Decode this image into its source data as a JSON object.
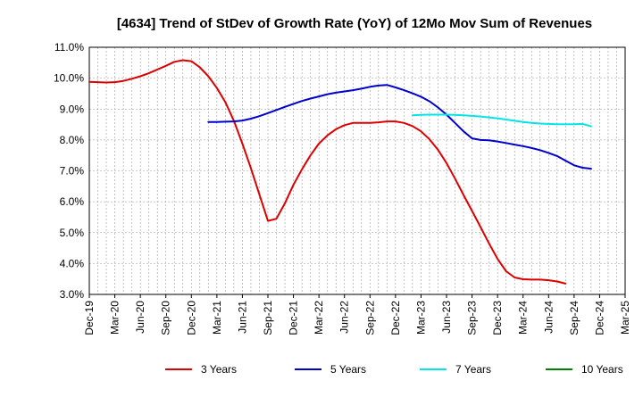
{
  "chart_data": {
    "type": "line",
    "title": "[4634]  Trend of StDev of Growth Rate (YoY) of 12Mo Mov Sum of Revenues",
    "xlabel": "",
    "ylabel": "",
    "ylim": [
      3.0,
      11.0
    ],
    "y_ticks": [
      "3.0%",
      "4.0%",
      "5.0%",
      "6.0%",
      "7.0%",
      "8.0%",
      "9.0%",
      "10.0%",
      "11.0%"
    ],
    "x_start": "2019-12",
    "x_end": "2025-03",
    "x_ticks": [
      "Dec-19",
      "Mar-20",
      "Jun-20",
      "Sep-20",
      "Dec-20",
      "Mar-21",
      "Jun-21",
      "Sep-21",
      "Dec-21",
      "Mar-22",
      "Jun-22",
      "Sep-22",
      "Dec-22",
      "Mar-23",
      "Jun-23",
      "Sep-23",
      "Dec-23",
      "Mar-24",
      "Jun-24",
      "Sep-24",
      "Dec-24",
      "Mar-25"
    ],
    "grid": true,
    "legend_position": "bottom",
    "series": [
      {
        "name": "3 Years",
        "color": "#dd0000",
        "start": "2019-12",
        "values": [
          9.88,
          9.87,
          9.86,
          9.87,
          9.91,
          9.98,
          10.06,
          10.16,
          10.28,
          10.4,
          10.53,
          10.58,
          10.55,
          10.35,
          10.06,
          9.68,
          9.22,
          8.62,
          7.88,
          7.08,
          6.23,
          5.38,
          5.45,
          5.95,
          6.55,
          7.05,
          7.5,
          7.88,
          8.15,
          8.35,
          8.48,
          8.55,
          8.55,
          8.55,
          8.57,
          8.6,
          8.6,
          8.55,
          8.45,
          8.28,
          8.02,
          7.68,
          7.25,
          6.75,
          6.22,
          5.7,
          5.18,
          4.65,
          4.15,
          3.75,
          3.55,
          3.49,
          3.48,
          3.48,
          3.46,
          3.42,
          3.35
        ]
      },
      {
        "name": "5 Years",
        "color": "#0000cc",
        "start": "2021-02",
        "values": [
          8.58,
          8.58,
          8.59,
          8.6,
          8.63,
          8.69,
          8.77,
          8.87,
          8.97,
          9.07,
          9.17,
          9.26,
          9.34,
          9.41,
          9.48,
          9.53,
          9.57,
          9.61,
          9.66,
          9.72,
          9.76,
          9.78,
          9.7,
          9.61,
          9.51,
          9.4,
          9.25,
          9.05,
          8.82,
          8.55,
          8.28,
          8.05,
          8.0,
          7.99,
          7.95,
          7.9,
          7.85,
          7.8,
          7.74,
          7.67,
          7.58,
          7.48,
          7.33,
          7.18,
          7.1,
          7.07
        ]
      },
      {
        "name": "7 Years",
        "color": "#00e5e5",
        "start": "2023-02",
        "values": [
          8.8,
          8.81,
          8.82,
          8.82,
          8.82,
          8.81,
          8.8,
          8.78,
          8.76,
          8.73,
          8.7,
          8.66,
          8.62,
          8.58,
          8.55,
          8.53,
          8.52,
          8.51,
          8.51,
          8.51,
          8.52,
          8.44
        ]
      },
      {
        "name": "10 Years",
        "color": "#008000",
        "start": "2019-12",
        "values": []
      }
    ]
  }
}
